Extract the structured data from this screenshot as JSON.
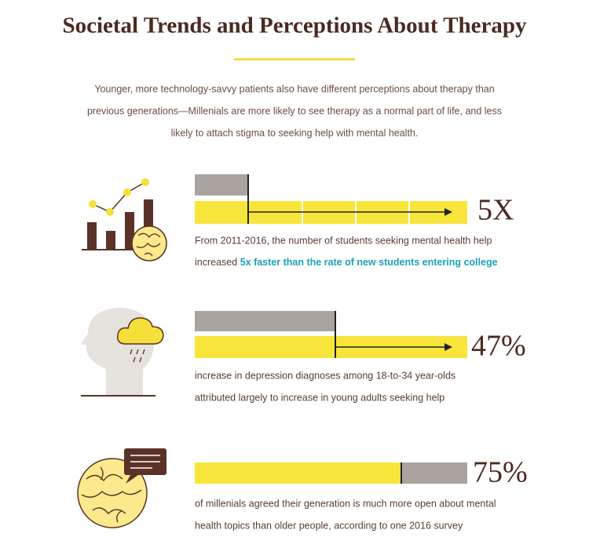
{
  "header": {
    "title": "Societal Trends and Perceptions About Therapy",
    "intro_lines": [
      "Younger, more technology-savvy patients also have different perceptions about therapy than",
      "previous generations—Millenials are more likely to see therapy as a normal part of life, and less",
      "likely to attach stigma to seeking help with mental health."
    ]
  },
  "stats": [
    {
      "figure": "5X",
      "lines": [
        "From 2011-2016, the number of students seeking mental health help",
        "increased"
      ],
      "highlight": "5x faster than the rate of new students entering college"
    },
    {
      "figure": "47%",
      "lines": [
        "increase in depression diagnoses among 18-to-34 year-olds",
        "attributed largely to increase in young adults seeking help"
      ]
    },
    {
      "figure": "75%",
      "lines": [
        "of millenials agreed their generation is much more open about mental",
        "health topics than older people, according to one 2016 survey"
      ]
    }
  ]
}
